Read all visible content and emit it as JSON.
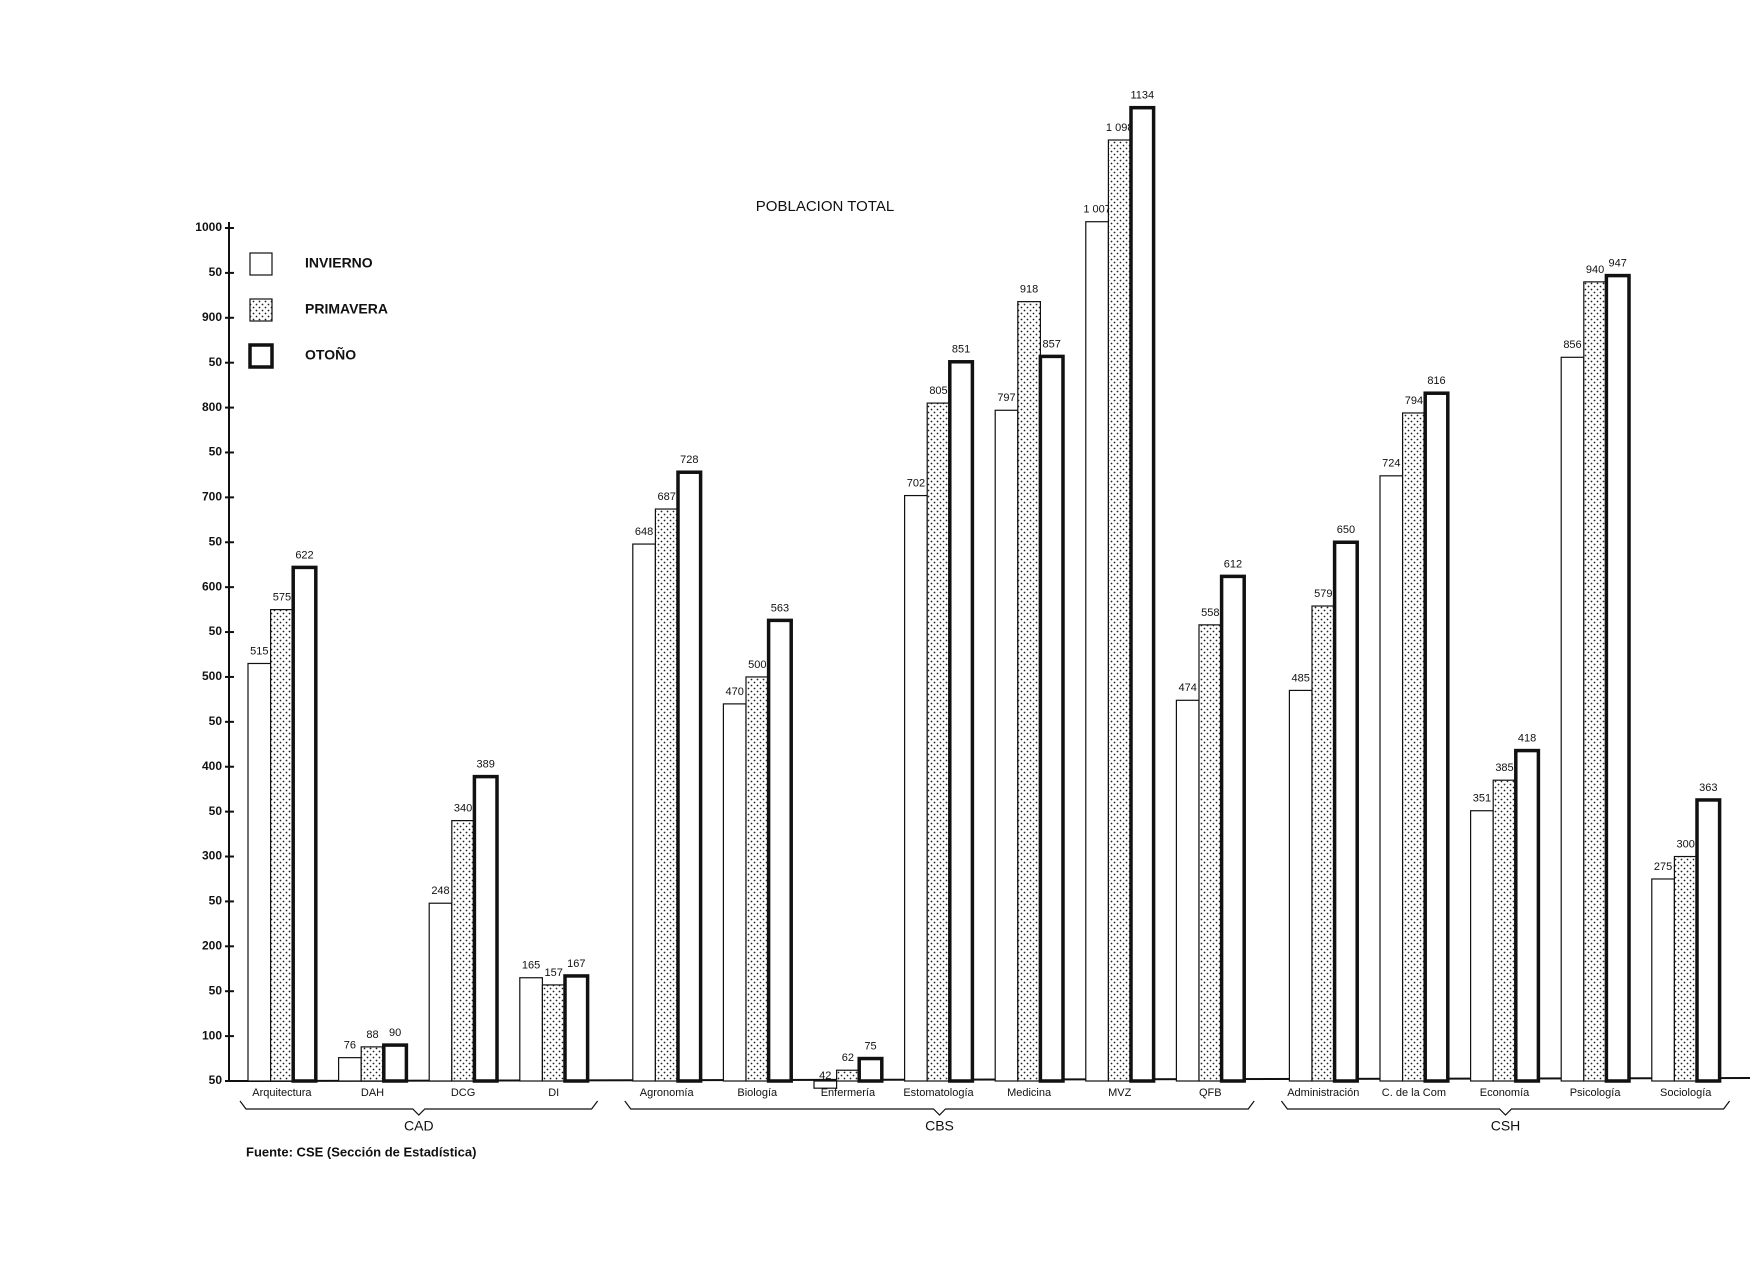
{
  "chart_data": {
    "type": "bar",
    "title": "POBLACION TOTAL",
    "source": "Fuente: CSE  (Sección de Estadística)",
    "categories": [
      "Arquitectura",
      "DAH",
      "DCG",
      "DI",
      "Agronomía",
      "Biología",
      "Enfermería",
      "Estomatología",
      "Medicina",
      "MVZ",
      "QFB",
      "Administración",
      "C. de la Com",
      "Economía",
      "Psicología",
      "Sociología"
    ],
    "groups": [
      {
        "name": "CAD",
        "size": 4
      },
      {
        "name": "CBS",
        "size": 7
      },
      {
        "name": "CSH",
        "size": 5
      }
    ],
    "series": [
      {
        "name": "INVIERNO",
        "color": "#ffffff",
        "pattern": "plain",
        "values": [
          515,
          76,
          248,
          165,
          648,
          470,
          42,
          702,
          797,
          1007,
          474,
          485,
          724,
          351,
          856,
          275
        ],
        "value_labels": [
          "515",
          "76",
          "248",
          "165",
          "648",
          "470",
          "42",
          "702",
          "797",
          "1 007",
          "474",
          "485",
          "724",
          "351",
          "856",
          "275"
        ]
      },
      {
        "name": "PRIMAVERA",
        "color": "#ffffff",
        "pattern": "dots",
        "values": [
          575,
          88,
          340,
          157,
          687,
          500,
          62,
          805,
          918,
          1098,
          558,
          579,
          794,
          385,
          940,
          300
        ],
        "value_labels": [
          "575",
          "88",
          "340",
          "157",
          "687",
          "500",
          "62",
          "805",
          "918",
          "1 098",
          "558",
          "579",
          "794",
          "385",
          "940",
          "300"
        ]
      },
      {
        "name": "OTOÑO",
        "color": "#ffffff",
        "pattern": "thick",
        "values": [
          622,
          90,
          389,
          167,
          728,
          563,
          75,
          851,
          857,
          1134,
          612,
          650,
          816,
          418,
          947,
          363
        ],
        "value_labels": [
          "622",
          "90",
          "389",
          "167",
          "728",
          "563",
          "75",
          "851",
          "857",
          "1134",
          "612",
          "650",
          "816",
          "418",
          "947",
          "363"
        ]
      }
    ],
    "ylim": [
      50,
      1000
    ],
    "yticks": [
      50,
      100,
      {
        "value": 150,
        "label": "50"
      },
      200,
      {
        "value": 250,
        "label": "50"
      },
      300,
      {
        "value": 350,
        "label": "50"
      },
      400,
      {
        "value": 450,
        "label": "50"
      },
      500,
      {
        "value": 550,
        "label": "50"
      },
      600,
      {
        "value": 650,
        "label": "50"
      },
      700,
      {
        "value": 750,
        "label": "50"
      },
      800,
      {
        "value": 850,
        "label": "50"
      },
      900,
      {
        "value": 950,
        "label": "50"
      },
      1000
    ],
    "legend": "upper left"
  }
}
